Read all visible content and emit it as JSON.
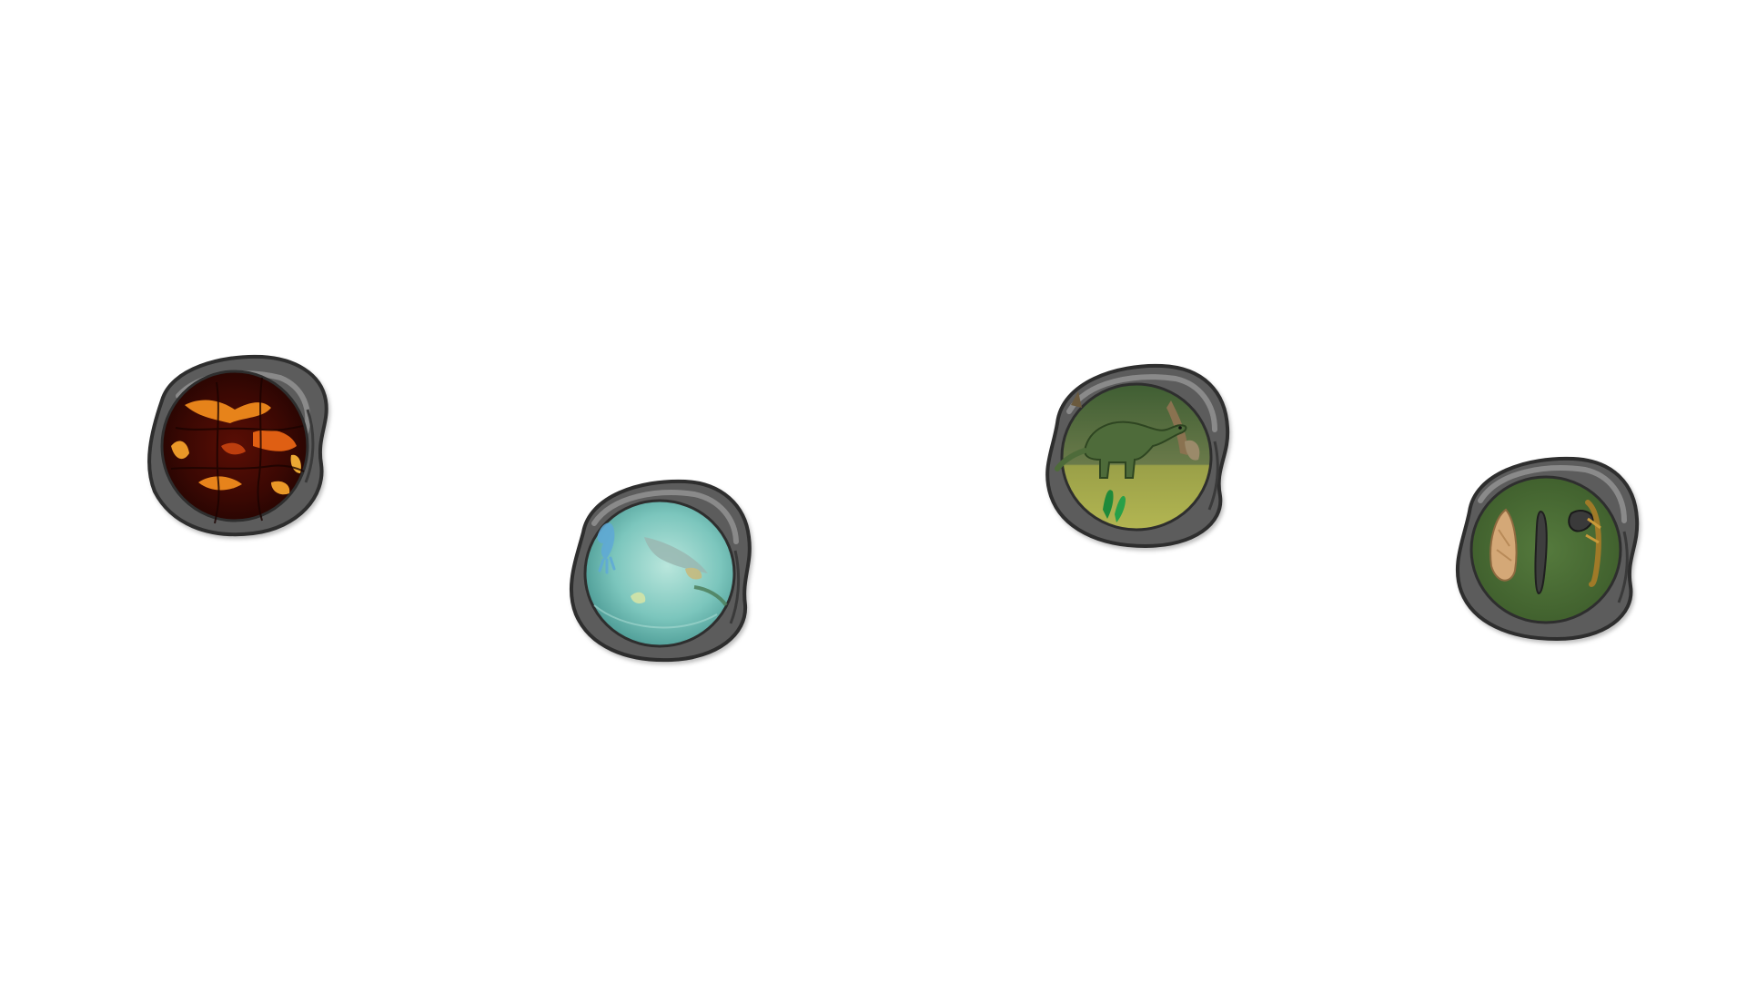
{
  "scene": {
    "background_color": "#ffffff"
  },
  "era_buttons": [
    {
      "id": "lava",
      "icon": "molten-lava-icon",
      "accent": "#e8751a"
    },
    {
      "id": "ocean",
      "icon": "primordial-ocean-icon",
      "accent": "#7ec9c0"
    },
    {
      "id": "dinosaur",
      "icon": "dinosaur-era-icon",
      "accent": "#5d7a3a"
    },
    {
      "id": "stone-tools",
      "icon": "stone-age-tools-icon",
      "accent": "#4c6b35"
    }
  ],
  "colors": {
    "stone_frame": "#5c5c5c",
    "stone_frame_light": "#8a8a8a",
    "stone_outline": "#2e2e2e"
  }
}
